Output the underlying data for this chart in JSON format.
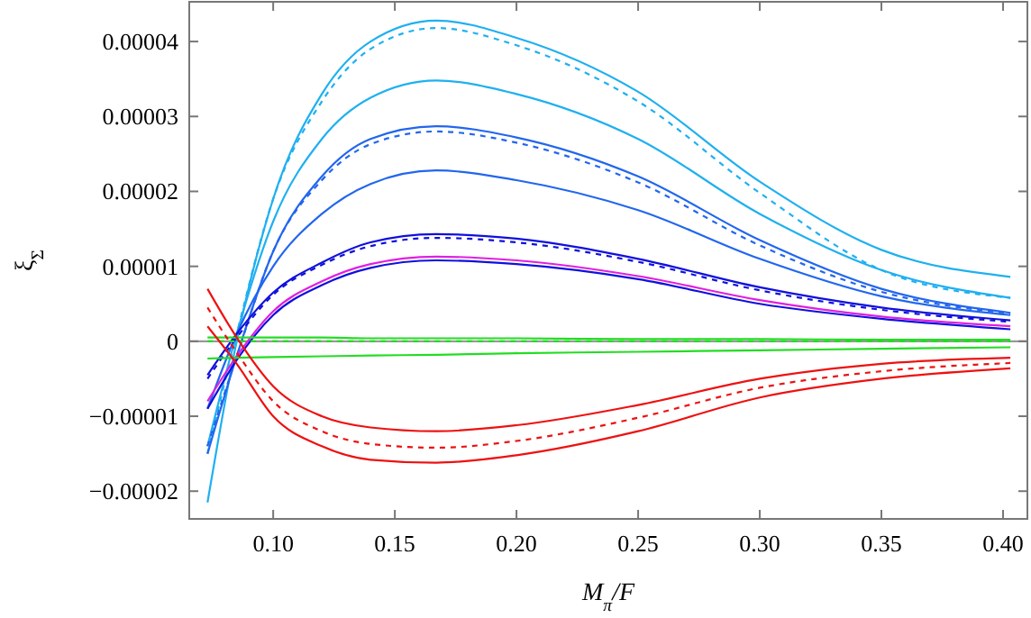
{
  "chart_data": {
    "type": "line",
    "xlabel": "M$_{π}$/F",
    "ylabel": "ξ$_{Σ}$",
    "x": [
      0.073,
      0.085,
      0.1,
      0.12,
      0.14,
      0.167,
      0.2,
      0.25,
      0.3,
      0.35,
      0.403
    ],
    "xlim": [
      0.0655,
      0.41
    ],
    "xticks": [
      {
        "value": 0.1,
        "label": "0.10"
      },
      {
        "value": 0.15,
        "label": "0.15"
      },
      {
        "value": 0.2,
        "label": "0.20"
      },
      {
        "value": 0.25,
        "label": "0.25"
      },
      {
        "value": 0.3,
        "label": "0.30"
      },
      {
        "value": 0.35,
        "label": "0.35"
      },
      {
        "value": 0.4,
        "label": "0.40"
      }
    ],
    "ylim": [
      -2.37e-05,
      4.53e-05
    ],
    "yticks": [
      {
        "value": -2e-05,
        "label": "−0.00002"
      },
      {
        "value": -1e-05,
        "label": "−0.00001"
      },
      0,
      {
        "value": 1e-05,
        "label": "0.00001"
      },
      {
        "value": 2e-05,
        "label": "0.00002"
      },
      {
        "value": 3e-05,
        "label": "0.00003"
      },
      {
        "value": 4e-05,
        "label": "0.00004"
      }
    ],
    "grid": false,
    "line_style": "solid",
    "ref_lines": [
      {
        "axis": "y",
        "value": 0,
        "color": "#999999"
      }
    ],
    "series": [
      {
        "color": "#1fb0f0",
        "values": [
          -2.15e-05,
          0,
          1.9e-05,
          3.3e-05,
          4e-05,
          4.28e-05,
          4.05e-05,
          3.33e-05,
          2.13e-05,
          1.22e-05,
          8.6e-06
        ]
      },
      {
        "color": "#1fb0f0",
        "line_style": "dashed",
        "values": [
          -1.5e-05,
          1e-06,
          1.9e-05,
          3.2e-05,
          3.9e-05,
          4.18e-05,
          3.95e-05,
          3.2e-05,
          1.98e-05,
          9.5e-06,
          5.8e-06
        ]
      },
      {
        "color": "#1fb0f0",
        "values": [
          -1.4e-05,
          1e-06,
          1.6e-05,
          2.7e-05,
          3.25e-05,
          3.48e-05,
          3.3e-05,
          2.7e-05,
          1.7e-05,
          9.5e-06,
          5.8e-06
        ]
      },
      {
        "color": "#2266ee",
        "values": [
          -1.5e-05,
          -2e-06,
          1.2e-05,
          2.2e-05,
          2.7e-05,
          2.87e-05,
          2.72e-05,
          2.2e-05,
          1.35e-05,
          7e-06,
          3.8e-06
        ]
      },
      {
        "color": "#2266ee",
        "line_style": "dashed",
        "values": [
          -1.4e-05,
          -2e-06,
          1.2e-05,
          2.15e-05,
          2.63e-05,
          2.8e-05,
          2.65e-05,
          2.12e-05,
          1.28e-05,
          6.6e-06,
          3.7e-06
        ]
      },
      {
        "color": "#2266ee",
        "values": [
          -9e-06,
          1e-06,
          1e-05,
          1.7e-05,
          2.1e-05,
          2.28e-05,
          2.15e-05,
          1.75e-05,
          1.1e-05,
          6e-06,
          3.5e-06
        ]
      },
      {
        "color": "#1010dd",
        "values": [
          -4.5e-06,
          1e-06,
          6.5e-06,
          1.05e-05,
          1.32e-05,
          1.43e-05,
          1.37e-05,
          1.1e-05,
          7.2e-06,
          4.5e-06,
          2.8e-06
        ]
      },
      {
        "color": "#1010dd",
        "line_style": "dashed",
        "values": [
          -5e-06,
          5e-07,
          6.2e-06,
          1.02e-05,
          1.27e-05,
          1.38e-05,
          1.32e-05,
          1.06e-05,
          6.8e-06,
          4.2e-06,
          2.6e-06
        ]
      },
      {
        "color": "#e020e0",
        "values": [
          -8e-06,
          -2e-06,
          4e-06,
          8e-06,
          1.03e-05,
          1.13e-05,
          1.08e-05,
          8.7e-06,
          5.5e-06,
          3.3e-06,
          2e-06
        ]
      },
      {
        "color": "#1010dd",
        "values": [
          -9e-06,
          -2.5e-06,
          3.5e-06,
          7.5e-06,
          9.8e-06,
          1.08e-05,
          1.03e-05,
          8.3e-06,
          5e-06,
          3e-06,
          1.6e-06
        ]
      },
      {
        "color": "#22dd22",
        "values": [
          5e-07,
          5e-07,
          5e-07,
          5e-07,
          4e-07,
          4e-07,
          4e-07,
          3e-07,
          3e-07,
          2e-07,
          2e-07
        ]
      },
      {
        "color": "#22dd22",
        "line_style": "dashed",
        "values": [
          0,
          0,
          0,
          0,
          0,
          0,
          0,
          0,
          0,
          0,
          0
        ]
      },
      {
        "color": "#22dd22",
        "values": [
          -2.3e-06,
          -2.2e-06,
          -2.1e-06,
          -2e-06,
          -1.9e-06,
          -1.8e-06,
          -1.6e-06,
          -1.4e-06,
          -1.2e-06,
          -1e-06,
          -8e-07
        ]
      },
      {
        "color": "#ee1111",
        "values": [
          7e-06,
          5e-07,
          -6e-06,
          -1e-05,
          -1.15e-05,
          -1.2e-05,
          -1.12e-05,
          -8.5e-06,
          -5e-06,
          -3e-06,
          -2.2e-06
        ]
      },
      {
        "color": "#ee1111",
        "line_style": "dashed",
        "values": [
          4.5e-06,
          -1.5e-06,
          -8e-06,
          -1.2e-05,
          -1.37e-05,
          -1.42e-05,
          -1.33e-05,
          -1.02e-05,
          -6.2e-06,
          -4e-06,
          -2.9e-06
        ]
      },
      {
        "color": "#ee1111",
        "values": [
          2e-06,
          -3e-06,
          -1e-05,
          -1.4e-05,
          -1.58e-05,
          -1.62e-05,
          -1.52e-05,
          -1.2e-05,
          -7.5e-06,
          -5e-06,
          -3.6e-06
        ]
      }
    ]
  }
}
